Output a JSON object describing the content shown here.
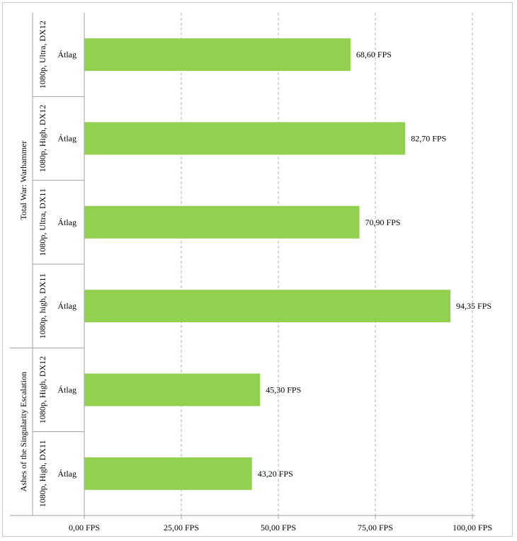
{
  "chart_data": {
    "type": "bar",
    "orientation": "horizontal",
    "bar_color": "#92d050",
    "grid": true,
    "xlim": [
      0,
      100
    ],
    "x_ticks": [
      "0,00 FPS",
      "25,00 FPS",
      "50,00 FPS",
      "75,00 FPS",
      "100,00 FPS"
    ],
    "x_tick_values": [
      0,
      25,
      50,
      75,
      100
    ],
    "groups": [
      {
        "name": "Total War: Warhammer",
        "subgroups": [
          {
            "name": "1080p, Ultra, DX12",
            "category": "Átlag",
            "value": 68.6,
            "label": "68,60  FPS"
          },
          {
            "name": "1080p, High, DX12",
            "category": "Átlag",
            "value": 82.7,
            "label": "82,70  FPS"
          },
          {
            "name": "1080p, Ultra, DX11",
            "category": "Átlag",
            "value": 70.9,
            "label": "70,90  FPS"
          },
          {
            "name": "1080p, high, DX11",
            "category": "Átlag",
            "value": 94.35,
            "label": "94,35  FPS"
          }
        ]
      },
      {
        "name": "Ashes of the Singularity Escalation",
        "subgroups": [
          {
            "name": "1080p, High, DX12",
            "category": "Átlag",
            "value": 45.3,
            "label": "45,30  FPS"
          },
          {
            "name": "1080p, High, DX11",
            "category": "Átlag",
            "value": 43.2,
            "label": "43,20  FPS"
          }
        ]
      }
    ]
  }
}
